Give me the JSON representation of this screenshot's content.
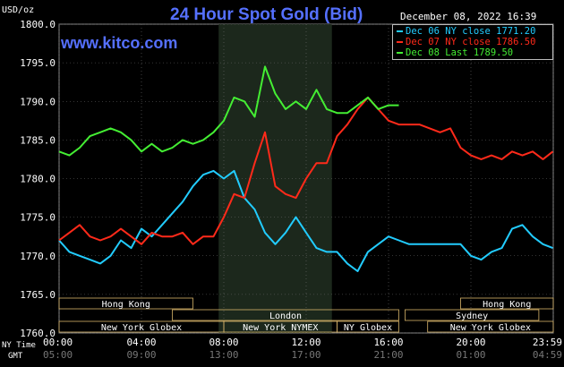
{
  "header": {
    "title": "24 Hour Spot Gold (Bid)",
    "site": "www.kitco.com",
    "unit": "USD/oz",
    "date": "December 08, 2022 16:39"
  },
  "legend": [
    {
      "text": "Dec 06 NY close 1771.20",
      "color": "#22ccff"
    },
    {
      "text": "Dec 07 NY close 1786.50",
      "color": "#ff2a1a"
    },
    {
      "text": "Dec 08 Last 1789.50",
      "color": "#44ee33"
    }
  ],
  "footer": {
    "ny_time_label": "NY Time",
    "gmt_label": "GMT"
  },
  "markets": [
    {
      "name": "Hong Kong",
      "start": 0,
      "end": 6.5,
      "row": 0
    },
    {
      "name": "London",
      "start": 5.5,
      "end": 16.5,
      "row": 1
    },
    {
      "name": "New York Globex",
      "start": 0,
      "end": 8.0,
      "row": 2
    },
    {
      "name": "New York NYMEX",
      "start": 8.0,
      "end": 13.5,
      "row": 2
    },
    {
      "name": "NY Globex",
      "start": 13.5,
      "end": 16.5,
      "row": 2
    },
    {
      "name": "Hong Kong",
      "start": 19.5,
      "end": 24.0,
      "row": 0
    },
    {
      "name": "Sydney",
      "start": 16.8,
      "end": 23.3,
      "row": 1
    },
    {
      "name": "New York Globex",
      "start": 17.9,
      "end": 24.0,
      "row": 2
    }
  ],
  "chart_data": {
    "type": "line",
    "title": "24 Hour Spot Gold (Bid)",
    "ylabel": "USD/oz",
    "ylim": [
      1760,
      1800
    ],
    "xlim": [
      0,
      24
    ],
    "y_ticks": [
      "1760.0",
      "1765.0",
      "1770.0",
      "1775.0",
      "1780.0",
      "1785.0",
      "1790.0",
      "1795.0",
      "1800.0"
    ],
    "x_ticks_ny": [
      "00:00",
      "04:00",
      "08:00",
      "12:00",
      "16:00",
      "20:00",
      "23:59"
    ],
    "x_ticks_gmt": [
      "05:00",
      "09:00",
      "13:00",
      "17:00",
      "21:00",
      "01:00",
      "04:59"
    ],
    "grid": true,
    "highlight_region": [
      7.75,
      13.25
    ],
    "series": [
      {
        "name": "Dec 06 NY close 1771.20",
        "color": "#22ccff",
        "x": [
          0.0,
          0.5,
          1.0,
          1.5,
          2.0,
          2.5,
          3.0,
          3.5,
          4.0,
          4.5,
          5.0,
          5.5,
          6.0,
          6.5,
          7.0,
          7.5,
          8.0,
          8.5,
          9.0,
          9.5,
          10.0,
          10.5,
          11.0,
          11.5,
          12.0,
          12.5,
          13.0,
          13.5,
          14.0,
          14.5,
          15.0,
          15.5,
          16.0,
          16.5,
          17.0,
          17.5,
          18.0,
          18.5,
          19.0,
          19.5,
          20.0,
          20.5,
          21.0,
          21.5,
          22.0,
          22.5,
          23.0,
          23.5,
          23.98
        ],
        "values": [
          1772.0,
          1770.5,
          1770.0,
          1769.5,
          1769.0,
          1770.0,
          1772.0,
          1771.0,
          1773.5,
          1772.5,
          1774.0,
          1775.5,
          1777.0,
          1779.0,
          1780.5,
          1781.0,
          1780.0,
          1781.0,
          1777.5,
          1776.0,
          1773.0,
          1771.5,
          1773.0,
          1775.0,
          1773.0,
          1771.0,
          1770.5,
          1770.5,
          1769.0,
          1768.0,
          1770.5,
          1771.5,
          1772.5,
          1772.0,
          1771.5,
          1771.5,
          1771.5,
          1771.5,
          1771.5,
          1771.5,
          1770.0,
          1769.5,
          1770.5,
          1771.0,
          1773.5,
          1774.0,
          1772.5,
          1771.5,
          1771.0
        ]
      },
      {
        "name": "Dec 07 NY close 1786.50",
        "color": "#ff2a1a",
        "x": [
          0.0,
          0.5,
          1.0,
          1.5,
          2.0,
          2.5,
          3.0,
          3.5,
          4.0,
          4.5,
          5.0,
          5.5,
          6.0,
          6.5,
          7.0,
          7.5,
          8.0,
          8.5,
          9.0,
          9.5,
          10.0,
          10.5,
          11.0,
          11.5,
          12.0,
          12.5,
          13.0,
          13.5,
          14.0,
          14.5,
          15.0,
          15.5,
          16.0,
          16.5,
          17.0,
          17.5,
          18.0,
          18.5,
          19.0,
          19.5,
          20.0,
          20.5,
          21.0,
          21.5,
          22.0,
          22.5,
          23.0,
          23.5,
          23.98
        ],
        "values": [
          1772.0,
          1773.0,
          1774.0,
          1772.5,
          1772.0,
          1772.5,
          1773.5,
          1772.5,
          1771.5,
          1773.0,
          1772.5,
          1772.5,
          1773.0,
          1771.5,
          1772.5,
          1772.5,
          1775.0,
          1778.0,
          1777.5,
          1782.0,
          1786.0,
          1779.0,
          1778.0,
          1777.5,
          1780.0,
          1782.0,
          1782.0,
          1785.5,
          1787.0,
          1789.0,
          1790.5,
          1789.0,
          1787.5,
          1787.0,
          1787.0,
          1787.0,
          1786.5,
          1786.0,
          1786.5,
          1784.0,
          1783.0,
          1782.5,
          1783.0,
          1782.5,
          1783.5,
          1783.0,
          1783.5,
          1782.5,
          1783.5
        ]
      },
      {
        "name": "Dec 08 Last 1789.50",
        "color": "#44ee33",
        "x": [
          0.0,
          0.5,
          1.0,
          1.5,
          2.0,
          2.5,
          3.0,
          3.5,
          4.0,
          4.5,
          5.0,
          5.5,
          6.0,
          6.5,
          7.0,
          7.5,
          8.0,
          8.5,
          9.0,
          9.5,
          10.0,
          10.5,
          11.0,
          11.5,
          12.0,
          12.5,
          13.0,
          13.5,
          14.0,
          14.5,
          15.0,
          15.5,
          16.0,
          16.5
        ],
        "values": [
          1783.5,
          1783.0,
          1784.0,
          1785.5,
          1786.0,
          1786.5,
          1786.0,
          1785.0,
          1783.5,
          1784.5,
          1783.5,
          1784.0,
          1785.0,
          1784.5,
          1785.0,
          1786.0,
          1787.5,
          1790.5,
          1790.0,
          1788.0,
          1794.5,
          1791.0,
          1789.0,
          1790.0,
          1789.0,
          1791.5,
          1789.0,
          1788.5,
          1788.5,
          1789.5,
          1790.5,
          1789.0,
          1789.5,
          1789.5
        ]
      }
    ]
  }
}
